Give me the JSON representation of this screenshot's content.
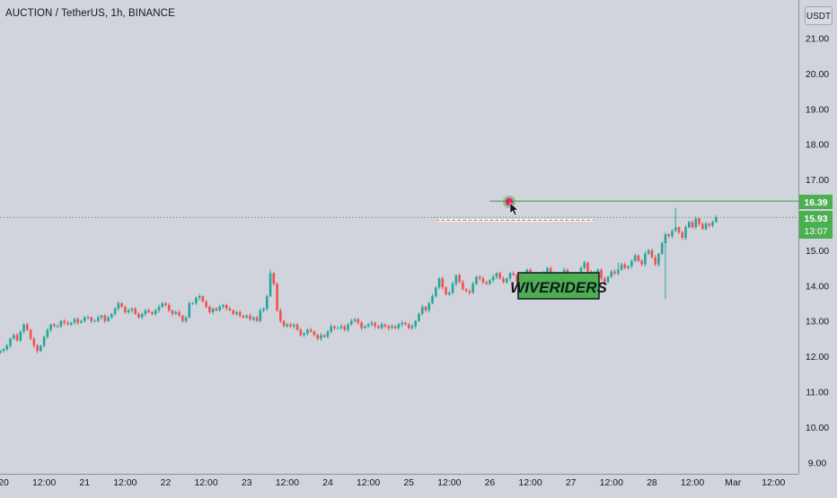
{
  "header": {
    "symbol_title": "AUCTION / TetherUS, 1h, BINANCE",
    "currency": "USDT"
  },
  "watermark": "WIVERIDERS",
  "price_badges": {
    "target": "16.39",
    "last": "15.93",
    "countdown": "13:07"
  },
  "colors": {
    "background": "#d1d4dc",
    "bullish": "#26a69a",
    "bearish": "#ef5350",
    "target_line": "#4caf50",
    "last_price_line": "#4caf50",
    "watermark_bg": "#4caf50",
    "resistance_line": "#ef5350"
  },
  "chart_data": {
    "type": "candlestick",
    "symbol": "AUCTION / TetherUS",
    "interval": "1h",
    "exchange": "BINANCE",
    "currency": "USDT",
    "y_ticks": [
      "21.00",
      "20.00",
      "19.00",
      "18.00",
      "17.00",
      "15.00",
      "14.00",
      "13.00",
      "12.00",
      "11.00",
      "10.00",
      "9.00"
    ],
    "ylim": [
      9.0,
      21.8
    ],
    "x_ticks": [
      "20",
      "12:00",
      "21",
      "12:00",
      "22",
      "12:00",
      "23",
      "12:00",
      "24",
      "12:00",
      "25",
      "12:00",
      "26",
      "12:00",
      "27",
      "12:00",
      "28",
      "12:00",
      "Mar",
      "12:00"
    ],
    "x_tick_hours": [
      0,
      12,
      24,
      36,
      48,
      60,
      72,
      84,
      96,
      108,
      120,
      132,
      144,
      156,
      168,
      180,
      192,
      204,
      216,
      228
    ],
    "xlim_hours": [
      0,
      240
    ],
    "first_candle_hour": -1,
    "last_price": 15.93,
    "target_level": 16.39,
    "resistance_level": 15.85,
    "resistance_span_hours": [
      128,
      175
    ],
    "closes": [
      12.15,
      12.2,
      12.3,
      12.5,
      12.6,
      12.45,
      12.7,
      12.9,
      12.75,
      12.5,
      12.3,
      12.15,
      12.3,
      12.55,
      12.75,
      12.9,
      12.85,
      12.85,
      13.0,
      12.95,
      12.9,
      12.95,
      13.05,
      12.95,
      13.0,
      13.1,
      13.1,
      13.0,
      13.0,
      13.1,
      13.15,
      13.0,
      13.1,
      13.2,
      13.35,
      13.5,
      13.4,
      13.25,
      13.3,
      13.35,
      13.2,
      13.1,
      13.2,
      13.3,
      13.25,
      13.2,
      13.3,
      13.4,
      13.5,
      13.45,
      13.3,
      13.2,
      13.25,
      13.15,
      13.0,
      13.1,
      13.5,
      13.5,
      13.65,
      13.7,
      13.55,
      13.4,
      13.25,
      13.35,
      13.3,
      13.4,
      13.45,
      13.35,
      13.3,
      13.2,
      13.25,
      13.15,
      13.1,
      13.15,
      13.05,
      13.1,
      13.0,
      13.3,
      13.35,
      13.7,
      14.35,
      14.05,
      13.3,
      13.0,
      12.85,
      12.9,
      12.85,
      12.9,
      12.75,
      12.6,
      12.65,
      12.75,
      12.7,
      12.6,
      12.5,
      12.6,
      12.55,
      12.7,
      12.85,
      12.8,
      12.8,
      12.85,
      12.75,
      12.9,
      13.0,
      13.05,
      12.95,
      12.8,
      12.85,
      12.9,
      12.95,
      12.85,
      12.8,
      12.9,
      12.85,
      12.8,
      12.85,
      12.8,
      12.9,
      12.95,
      12.9,
      12.8,
      12.85,
      13.0,
      13.2,
      13.4,
      13.3,
      13.5,
      13.7,
      13.95,
      14.2,
      13.95,
      13.75,
      13.8,
      14.05,
      14.3,
      14.1,
      13.9,
      13.85,
      13.8,
      14.05,
      14.25,
      14.2,
      14.1,
      14.05,
      14.15,
      14.25,
      14.35,
      14.2,
      14.1,
      14.2,
      14.35,
      14.3,
      14.1,
      14.0,
      14.25,
      14.45,
      14.25,
      14.05,
      13.95,
      14.15,
      14.35,
      14.5,
      14.3,
      14.25,
      14.2,
      14.3,
      14.45,
      14.3,
      14.15,
      14.2,
      14.3,
      14.5,
      14.65,
      14.4,
      14.25,
      14.35,
      14.45,
      14.2,
      14.1,
      14.25,
      14.4,
      14.35,
      14.45,
      14.6,
      14.5,
      14.55,
      14.7,
      14.85,
      14.7,
      14.6,
      14.9,
      15.0,
      14.8,
      14.6,
      14.9,
      15.2,
      15.45,
      15.4,
      15.55,
      15.65,
      15.5,
      15.35,
      15.65,
      15.8,
      15.65,
      15.9,
      15.75,
      15.6,
      15.75,
      15.7,
      15.8,
      15.93
    ]
  }
}
